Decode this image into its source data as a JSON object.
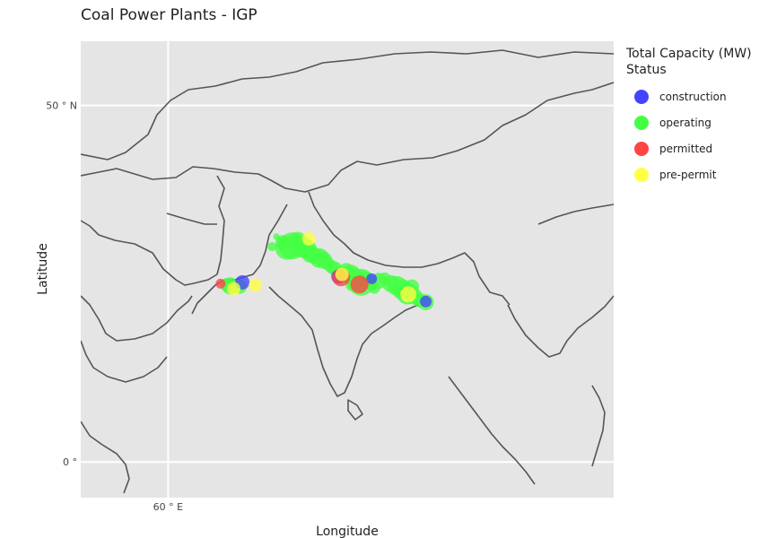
{
  "map": {
    "title": "Coal Power Plants - IGP",
    "xlabel": "Longitude",
    "ylabel": "Latitude",
    "lon_range": [
      50,
      111
    ],
    "lat_range": [
      -5,
      59
    ],
    "ticks": {
      "lon": [
        {
          "value": 60,
          "label": "60 ° E"
        }
      ],
      "lat": [
        {
          "value": 50,
          "label": "50 ° N"
        },
        {
          "value": 0,
          "label": "0 °"
        }
      ]
    },
    "land_color": "#e5e5e5",
    "border_color": "#555555"
  },
  "legend": {
    "title_line1": "Total Capacity (MW)",
    "title_line2": "Status",
    "items": [
      {
        "label": "construction",
        "color": "#4444ff"
      },
      {
        "label": "operating",
        "color": "#44ff44"
      },
      {
        "label": "permitted",
        "color": "#ff4444"
      },
      {
        "label": "pre-permit",
        "color": "#ffff44"
      }
    ]
  },
  "chart_data": {
    "type": "scatter",
    "x_unit": "longitude",
    "y_unit": "latitude",
    "series": [
      {
        "name": "operating",
        "color": "#44ff44",
        "points": [
          {
            "lon": 66.8,
            "lat": 24.8,
            "size": 1.6
          },
          {
            "lon": 67.1,
            "lat": 24.7,
            "size": 1.9
          },
          {
            "lon": 68.2,
            "lat": 24.6,
            "size": 1.6
          },
          {
            "lon": 71.9,
            "lat": 30.2,
            "size": 1.0
          },
          {
            "lon": 72.4,
            "lat": 31.6,
            "size": 0.7
          },
          {
            "lon": 73.1,
            "lat": 30.8,
            "size": 1.6
          },
          {
            "lon": 73.6,
            "lat": 30.0,
            "size": 2.6
          },
          {
            "lon": 74.2,
            "lat": 30.3,
            "size": 3.0
          },
          {
            "lon": 74.8,
            "lat": 30.9,
            "size": 2.2
          },
          {
            "lon": 75.3,
            "lat": 30.2,
            "size": 2.4
          },
          {
            "lon": 75.9,
            "lat": 29.8,
            "size": 2.2
          },
          {
            "lon": 76.3,
            "lat": 29.2,
            "size": 2.0
          },
          {
            "lon": 76.8,
            "lat": 28.9,
            "size": 1.8
          },
          {
            "lon": 77.3,
            "lat": 28.6,
            "size": 2.2
          },
          {
            "lon": 77.8,
            "lat": 28.3,
            "size": 1.9
          },
          {
            "lon": 78.3,
            "lat": 27.8,
            "size": 1.5
          },
          {
            "lon": 78.7,
            "lat": 27.4,
            "size": 1.5
          },
          {
            "lon": 79.1,
            "lat": 27.1,
            "size": 1.6
          },
          {
            "lon": 79.7,
            "lat": 26.6,
            "size": 1.4
          },
          {
            "lon": 80.4,
            "lat": 26.9,
            "size": 1.6
          },
          {
            "lon": 80.9,
            "lat": 26.3,
            "size": 2.2
          },
          {
            "lon": 81.5,
            "lat": 25.9,
            "size": 2.0
          },
          {
            "lon": 82.1,
            "lat": 25.2,
            "size": 3.0
          },
          {
            "lon": 82.6,
            "lat": 25.6,
            "size": 1.8
          },
          {
            "lon": 83.2,
            "lat": 25.1,
            "size": 1.6
          },
          {
            "lon": 84.1,
            "lat": 25.4,
            "size": 1.8
          },
          {
            "lon": 84.8,
            "lat": 25.7,
            "size": 1.4
          },
          {
            "lon": 85.5,
            "lat": 25.0,
            "size": 1.9
          },
          {
            "lon": 86.2,
            "lat": 24.7,
            "size": 2.2
          },
          {
            "lon": 86.8,
            "lat": 24.2,
            "size": 2.3
          },
          {
            "lon": 87.4,
            "lat": 23.6,
            "size": 2.4
          },
          {
            "lon": 87.9,
            "lat": 24.6,
            "size": 1.6
          },
          {
            "lon": 88.2,
            "lat": 23.2,
            "size": 1.8
          },
          {
            "lon": 88.8,
            "lat": 22.7,
            "size": 1.6
          },
          {
            "lon": 89.5,
            "lat": 22.4,
            "size": 1.8
          },
          {
            "lon": 83.6,
            "lat": 24.4,
            "size": 1.3
          },
          {
            "lon": 81.0,
            "lat": 24.8,
            "size": 1.3
          }
        ]
      },
      {
        "name": "construction",
        "color": "#4444ff",
        "points": [
          {
            "lon": 68.5,
            "lat": 25.2,
            "size": 1.6
          },
          {
            "lon": 79.5,
            "lat": 26.0,
            "size": 1.6
          },
          {
            "lon": 83.3,
            "lat": 25.7,
            "size": 1.2
          },
          {
            "lon": 89.5,
            "lat": 22.5,
            "size": 1.3
          }
        ]
      },
      {
        "name": "permitted",
        "color": "#ff4444",
        "points": [
          {
            "lon": 66.0,
            "lat": 25.0,
            "size": 1.1
          },
          {
            "lon": 79.8,
            "lat": 25.9,
            "size": 2.0
          },
          {
            "lon": 81.9,
            "lat": 24.9,
            "size": 2.0
          }
        ]
      },
      {
        "name": "pre-permit",
        "color": "#ffff44",
        "points": [
          {
            "lon": 67.5,
            "lat": 24.3,
            "size": 1.5
          },
          {
            "lon": 70.0,
            "lat": 24.8,
            "size": 1.5
          },
          {
            "lon": 76.1,
            "lat": 31.3,
            "size": 1.5
          },
          {
            "lon": 79.9,
            "lat": 26.3,
            "size": 1.5
          },
          {
            "lon": 87.5,
            "lat": 23.5,
            "size": 1.8
          }
        ]
      }
    ]
  }
}
